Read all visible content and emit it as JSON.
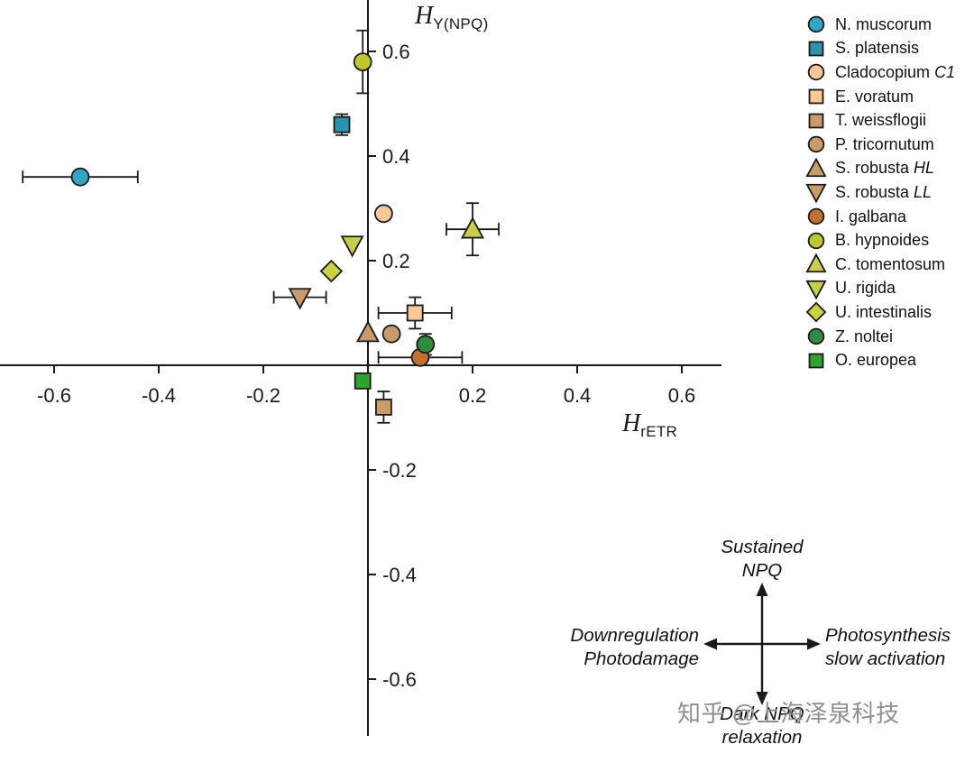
{
  "watermark": "知乎 @上海泽泉科技",
  "chart_data": {
    "type": "scatter",
    "title": "",
    "xlabel": {
      "main": "H",
      "sub": "rETR"
    },
    "ylabel": {
      "main": "H",
      "sub": "Y(NPQ)"
    },
    "xlim": [
      -0.7,
      0.7
    ],
    "ylim": [
      -0.72,
      0.7
    ],
    "xticks": [
      -0.6,
      -0.4,
      -0.2,
      0.2,
      0.4,
      0.6
    ],
    "yticks": [
      0.6,
      0.4,
      0.2,
      -0.2,
      -0.4,
      -0.6
    ],
    "grid": false,
    "legend_position": "right",
    "axis_color": "#1a1a1a",
    "series": [
      {
        "name": "N. muscorum",
        "marker": "circle",
        "color": "#35A3C6",
        "x": -0.55,
        "y": 0.36,
        "xerr": 0.11,
        "yerr": 0
      },
      {
        "name": "S. platensis",
        "marker": "square",
        "color": "#2B93AE",
        "x": -0.05,
        "y": 0.46,
        "xerr": 0,
        "yerr": 0.02
      },
      {
        "name": "Cladocopium",
        "name_italic": "C1",
        "marker": "circle",
        "color": "#F9C897",
        "x": 0.03,
        "y": 0.29,
        "xerr": 0,
        "yerr": 0
      },
      {
        "name": "E. voratum",
        "marker": "square",
        "color": "#F9C897",
        "x": 0.09,
        "y": 0.1,
        "xerr": 0.07,
        "yerr": 0.03
      },
      {
        "name": "T. weissflogii",
        "marker": "square",
        "color": "#C99B6B",
        "x": 0.03,
        "y": -0.08,
        "xerr": 0,
        "yerr": 0.03
      },
      {
        "name": "P. tricornutum",
        "marker": "circle",
        "color": "#C99B6B",
        "x": 0.045,
        "y": 0.06,
        "xerr": 0,
        "yerr": 0
      },
      {
        "name": "S. robusta",
        "name_italic": "HL",
        "marker": "triangle-up",
        "color": "#C99B6B",
        "x": 0.0,
        "y": 0.062,
        "xerr": 0,
        "yerr": 0
      },
      {
        "name": "S. robusta",
        "name_italic": "LL",
        "marker": "triangle-down",
        "color": "#C99B6B",
        "x": -0.13,
        "y": 0.13,
        "xerr": 0.05,
        "yerr": 0
      },
      {
        "name": "I. galbana",
        "marker": "circle",
        "color": "#C2702F",
        "x": 0.1,
        "y": 0.015,
        "xerr": 0.08,
        "yerr": 0
      },
      {
        "name": "B. hypnoides",
        "marker": "circle",
        "color": "#C0C62E",
        "x": -0.01,
        "y": 0.58,
        "xerr": 0,
        "yerr": 0.06
      },
      {
        "name": "C. tomentosum",
        "marker": "triangle-up",
        "color": "#C8CE4B",
        "x": 0.2,
        "y": 0.26,
        "xerr": 0.05,
        "yerr": 0.05
      },
      {
        "name": "U. rigida",
        "marker": "triangle-down",
        "color": "#C8CE4B",
        "x": -0.03,
        "y": 0.23,
        "xerr": 0,
        "yerr": 0
      },
      {
        "name": "U. intestinalis",
        "marker": "diamond",
        "color": "#CBD13F",
        "x": -0.07,
        "y": 0.18,
        "xerr": 0,
        "yerr": 0
      },
      {
        "name": "Z. noltei",
        "marker": "circle",
        "color": "#2F8B3F",
        "x": 0.11,
        "y": 0.04,
        "xerr": 0,
        "yerr": 0.02
      },
      {
        "name": "O. europea",
        "marker": "square",
        "color": "#2FA32D",
        "x": -0.01,
        "y": -0.03,
        "xerr": 0,
        "yerr": 0
      }
    ],
    "quadrant_labels": {
      "top": "Sustained\nNPQ",
      "left": "Downregulation\nPhotodamage",
      "right": "Photosynthesis\nslow activation",
      "bottom": "Dark NPQ\nrelaxation"
    }
  }
}
